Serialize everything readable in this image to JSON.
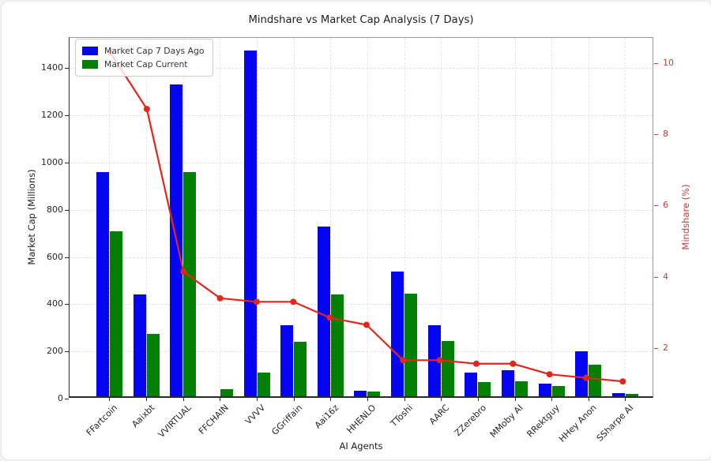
{
  "title": "Mindshare vs Market Cap Analysis (7 Days)",
  "axes": {
    "x_label": "AI Agents",
    "y_left_label": "Market Cap (Millions)",
    "y_right_label": "Mindshare (%)",
    "y_left_ticks": [
      0,
      200,
      400,
      600,
      800,
      1000,
      1200,
      1400
    ],
    "y_right_ticks": [
      2,
      4,
      6,
      8,
      10
    ]
  },
  "legend": [
    {
      "label": "Market Cap 7 Days Ago",
      "color": "#0505f0"
    },
    {
      "label": "Market Cap Current",
      "color": "#038003"
    }
  ],
  "colors": {
    "bar_prev": "#0505f0",
    "bar_current": "#038003",
    "line": "#e3261d",
    "right_axis_text": "#c0413d",
    "left_axis_text": "#262626",
    "grid": "#e2e2e2"
  },
  "chart_data": {
    "type": "bar+line",
    "title": "Mindshare vs Market Cap Analysis (7 Days)",
    "xlabel": "AI Agents",
    "ylabel_left": "Market Cap (Millions)",
    "ylabel_right": "Mindshare (%)",
    "categories": [
      "FFartcoin",
      "Aaixbt",
      "VVIRTUAL",
      "FFCHAIN",
      "VVVV",
      "GGriffain",
      "Aai16z",
      "HHENLO",
      "TToshi",
      "AARC",
      "ZZerebro",
      "MMoby AI",
      "RRektguy",
      "HHey Anon",
      "SSharpe AI"
    ],
    "series": [
      {
        "name": "Market Cap 7 Days Ago",
        "type": "bar",
        "axis": "left",
        "color": "#0505f0",
        "values": [
          950,
          430,
          1320,
          0,
          1465,
          300,
          720,
          25,
          530,
          300,
          100,
          110,
          55,
          190,
          15
        ]
      },
      {
        "name": "Market Cap Current",
        "type": "bar",
        "axis": "left",
        "color": "#038003",
        "values": [
          700,
          265,
          950,
          30,
          100,
          230,
          430,
          20,
          435,
          235,
          60,
          65,
          45,
          135,
          10
        ]
      },
      {
        "name": "Mindshare",
        "type": "line",
        "axis": "right",
        "color": "#e3261d",
        "values": [
          10.3,
          8.7,
          4.1,
          3.35,
          3.25,
          3.25,
          2.8,
          2.6,
          1.6,
          1.6,
          1.5,
          1.5,
          1.2,
          1.1,
          1.0
        ]
      }
    ],
    "ylim_left": [
      0,
      1528
    ],
    "ylim_right": [
      0.58,
      10.71
    ],
    "grid": true,
    "legend_position": "upper-left"
  }
}
